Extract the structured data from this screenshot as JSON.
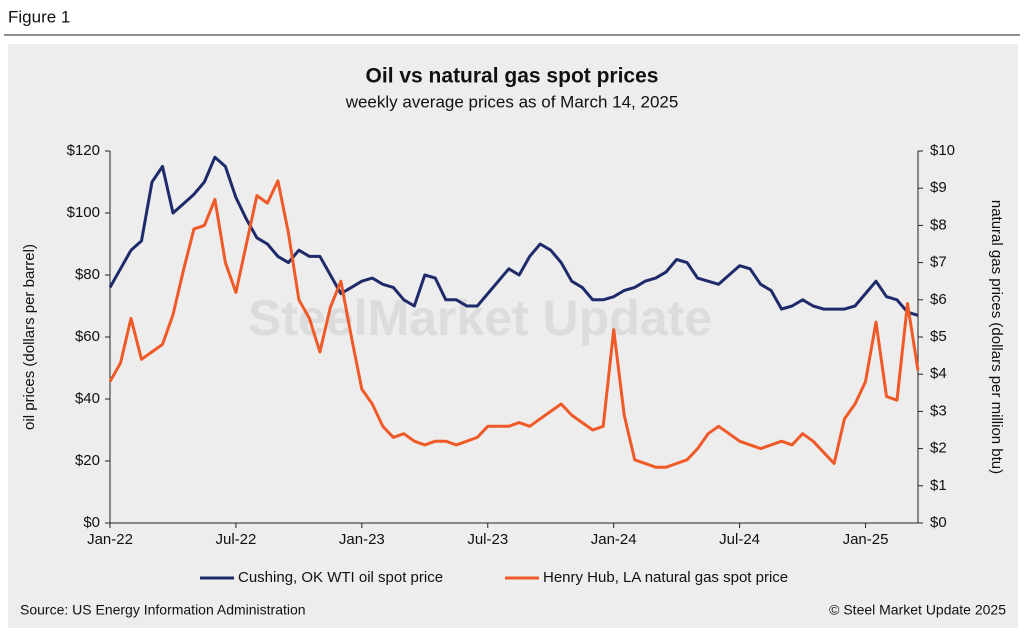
{
  "header": "Figure 1",
  "chart_data": {
    "type": "line",
    "title": "Oil vs natural gas spot prices",
    "subtitle": "weekly average prices as of March 14, 2025",
    "y_label": "oil prices (dollars per barrel)",
    "y2_label": "natural gas prices (dollars per million btu)",
    "watermark": "SteelMarket Update",
    "categories": [
      "Jan-22",
      null,
      null,
      null,
      null,
      null,
      null,
      null,
      null,
      null,
      null,
      null,
      "Jul-22",
      null,
      null,
      null,
      null,
      null,
      null,
      null,
      null,
      null,
      null,
      null,
      "Jan-23",
      null,
      null,
      null,
      null,
      null,
      null,
      null,
      null,
      null,
      null,
      null,
      "Jul-23",
      null,
      null,
      null,
      null,
      null,
      null,
      null,
      null,
      null,
      null,
      null,
      "Jan-24",
      null,
      null,
      null,
      null,
      null,
      null,
      null,
      null,
      null,
      null,
      null,
      "Jul-24",
      null,
      null,
      null,
      null,
      null,
      null,
      null,
      null,
      null,
      null,
      null,
      "Jan-25",
      null,
      null,
      null,
      null,
      null
    ],
    "series": [
      {
        "name": "Cushing, OK WTI oil spot price",
        "color": "#1f2a6b",
        "values": [
          76,
          82,
          88,
          91,
          110,
          115,
          100,
          103,
          106,
          110,
          118,
          115,
          105,
          98,
          92,
          90,
          86,
          84,
          88,
          86,
          86,
          80,
          74,
          76,
          78,
          79,
          77,
          76,
          72,
          70,
          80,
          79,
          72,
          72,
          70,
          70,
          74,
          78,
          82,
          80,
          86,
          90,
          88,
          84,
          78,
          76,
          72,
          72,
          73,
          75,
          76,
          78,
          79,
          81,
          85,
          84,
          79,
          78,
          77,
          80,
          83,
          82,
          77,
          75,
          69,
          70,
          72,
          70,
          69,
          69,
          69,
          70,
          74,
          78,
          73,
          72,
          68,
          67
        ]
      },
      {
        "name": "Henry Hub, LA natural gas spot price",
        "color": "#f05a28",
        "axis": "y2",
        "values": [
          3.8,
          4.3,
          5.5,
          4.4,
          4.6,
          4.8,
          5.6,
          6.8,
          7.9,
          8.0,
          8.7,
          7.0,
          6.2,
          7.5,
          8.8,
          8.6,
          9.2,
          7.8,
          6.0,
          5.5,
          4.6,
          5.8,
          6.5,
          5.0,
          3.6,
          3.2,
          2.6,
          2.3,
          2.4,
          2.2,
          2.1,
          2.2,
          2.2,
          2.1,
          2.2,
          2.3,
          2.6,
          2.6,
          2.6,
          2.7,
          2.6,
          2.8,
          3.0,
          3.2,
          2.9,
          2.7,
          2.5,
          2.6,
          5.2,
          2.9,
          1.7,
          1.6,
          1.5,
          1.5,
          1.6,
          1.7,
          2.0,
          2.4,
          2.6,
          2.4,
          2.2,
          2.1,
          2.0,
          2.1,
          2.2,
          2.1,
          2.4,
          2.2,
          1.9,
          1.6,
          2.8,
          3.2,
          3.8,
          5.4,
          3.4,
          3.3,
          5.9,
          4.1
        ]
      }
    ],
    "ylim": [
      0,
      120
    ],
    "yticks": [
      {
        "value": 0,
        "label": "$0"
      },
      {
        "value": 20,
        "label": "$20"
      },
      {
        "value": 40,
        "label": "$40"
      },
      {
        "value": 60,
        "label": "$60"
      },
      {
        "value": 80,
        "label": "$80"
      },
      {
        "value": 100,
        "label": "$100"
      },
      {
        "value": 120,
        "label": "$120"
      }
    ],
    "y2lim": [
      0,
      10
    ],
    "y2ticks": [
      {
        "value": 0,
        "label": "$0"
      },
      {
        "value": 1,
        "label": "$1"
      },
      {
        "value": 2,
        "label": "$2"
      },
      {
        "value": 3,
        "label": "$3"
      },
      {
        "value": 4,
        "label": "$4"
      },
      {
        "value": 5,
        "label": "$5"
      },
      {
        "value": 6,
        "label": "$6"
      },
      {
        "value": 7,
        "label": "$7"
      },
      {
        "value": 8,
        "label": "$8"
      },
      {
        "value": 9,
        "label": "$9"
      },
      {
        "value": 10,
        "label": "$10"
      }
    ],
    "legend": "bottom",
    "source": "Source: US Energy Information Administration",
    "copyright": "© Steel Market Update 2025"
  }
}
